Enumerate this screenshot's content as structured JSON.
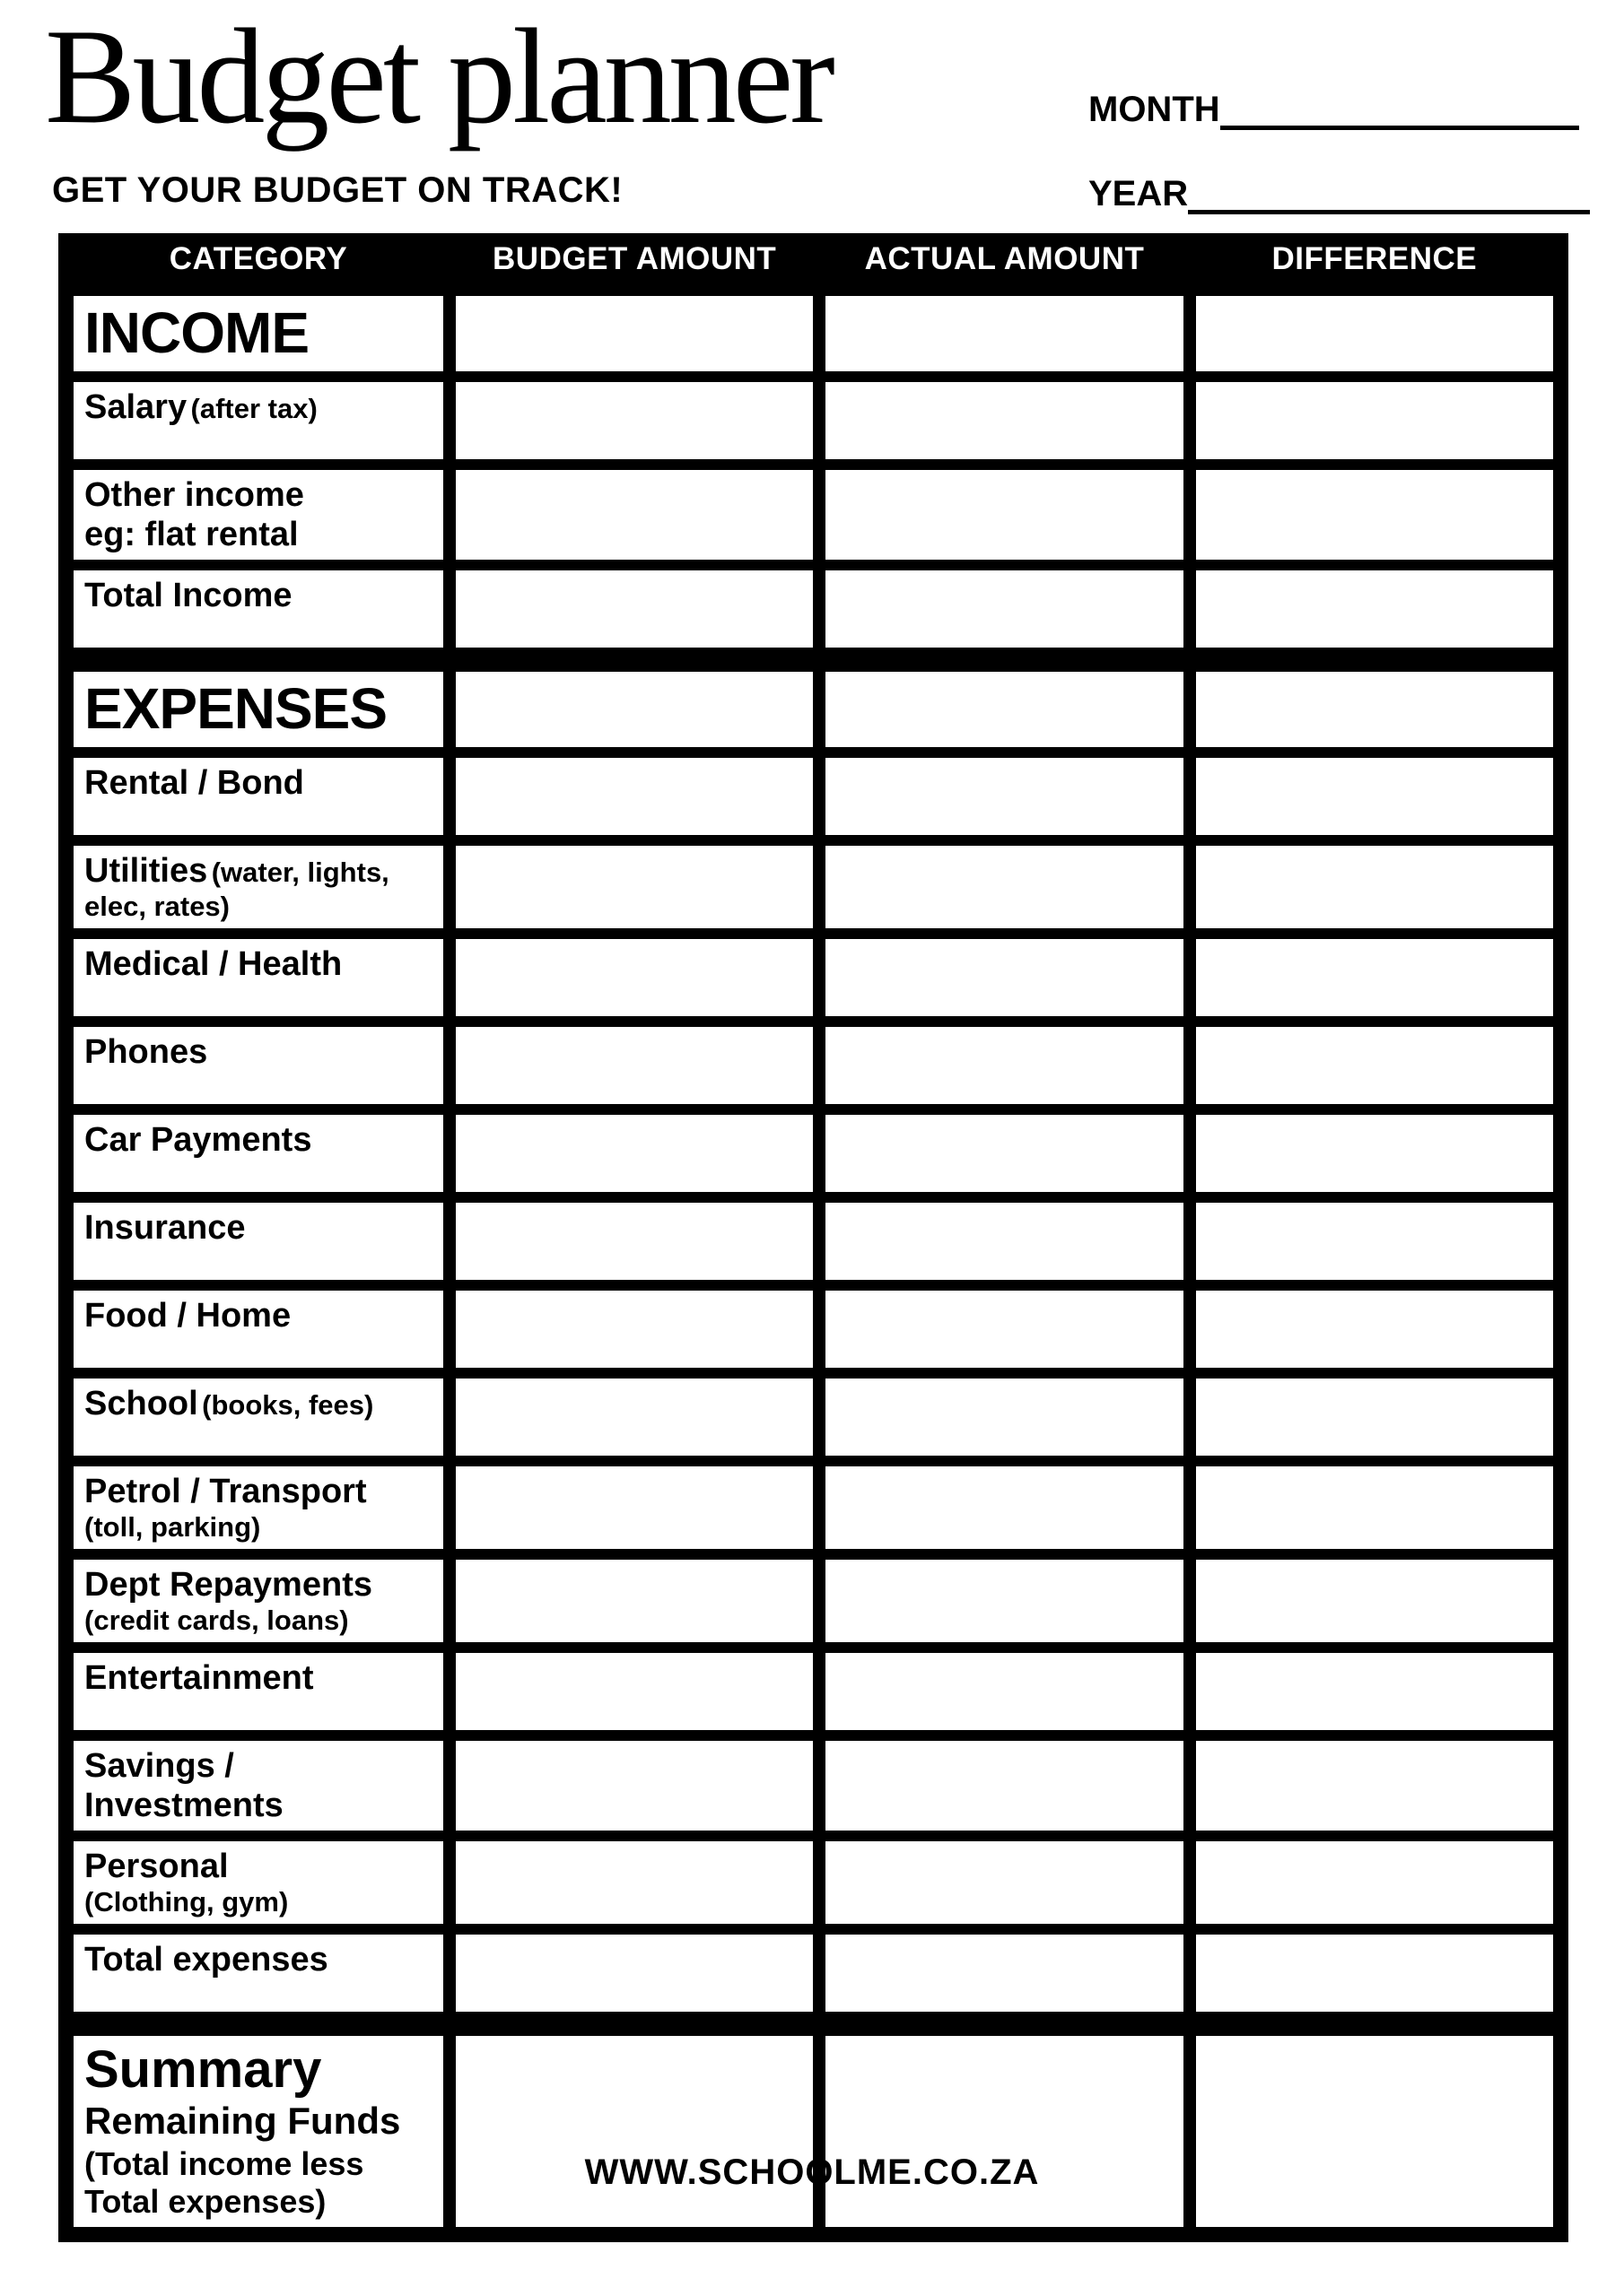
{
  "page": {
    "title": "Budget planner",
    "tagline": "GET YOUR BUDGET ON TRACK!",
    "month_label": "MONTH",
    "year_label": "YEAR",
    "footer": "WWW.SCHOOLME.CO.ZA",
    "colors": {
      "ink": "#000000",
      "paper": "#ffffff"
    }
  },
  "table": {
    "columns": [
      "CATEGORY",
      "BUDGET AMOUNT",
      "ACTUAL AMOUNT",
      "DIFFERENCE"
    ],
    "rows": [
      {
        "kind": "section",
        "title": "INCOME"
      },
      {
        "kind": "item",
        "main": "Salary",
        "inline_small": "(after tax)"
      },
      {
        "kind": "item",
        "main": "Other income",
        "line2": "eg: flat rental"
      },
      {
        "kind": "item",
        "main": "Total Income"
      },
      {
        "kind": "section",
        "title": "EXPENSES",
        "section_gap": true
      },
      {
        "kind": "item",
        "main": "Rental / Bond"
      },
      {
        "kind": "item",
        "main": "Utilities",
        "inline_small": "(water, lights,",
        "line2_small": "elec, rates)"
      },
      {
        "kind": "item",
        "main": "Medical / Health"
      },
      {
        "kind": "item",
        "main": "Phones"
      },
      {
        "kind": "item",
        "main": "Car Payments"
      },
      {
        "kind": "item",
        "main": "Insurance"
      },
      {
        "kind": "item",
        "main": "Food / Home"
      },
      {
        "kind": "item",
        "main": "School",
        "inline_small": "(books, fees)"
      },
      {
        "kind": "item",
        "main": "Petrol / Transport",
        "line2_small": "(toll, parking)"
      },
      {
        "kind": "item",
        "main": "Dept Repayments",
        "line2_small": "(credit cards, loans)"
      },
      {
        "kind": "item",
        "main": "Entertainment"
      },
      {
        "kind": "item",
        "main": "Savings /",
        "line2": "Investments"
      },
      {
        "kind": "item",
        "main": "Personal",
        "line2_small": "(Clothing, gym)"
      },
      {
        "kind": "item",
        "main": "Total expenses"
      },
      {
        "kind": "summary",
        "title": "Summary",
        "subtitle": "Remaining Funds",
        "note_line1": "(Total income less",
        "note_line2": "Total expenses)",
        "section_gap": true
      }
    ]
  }
}
